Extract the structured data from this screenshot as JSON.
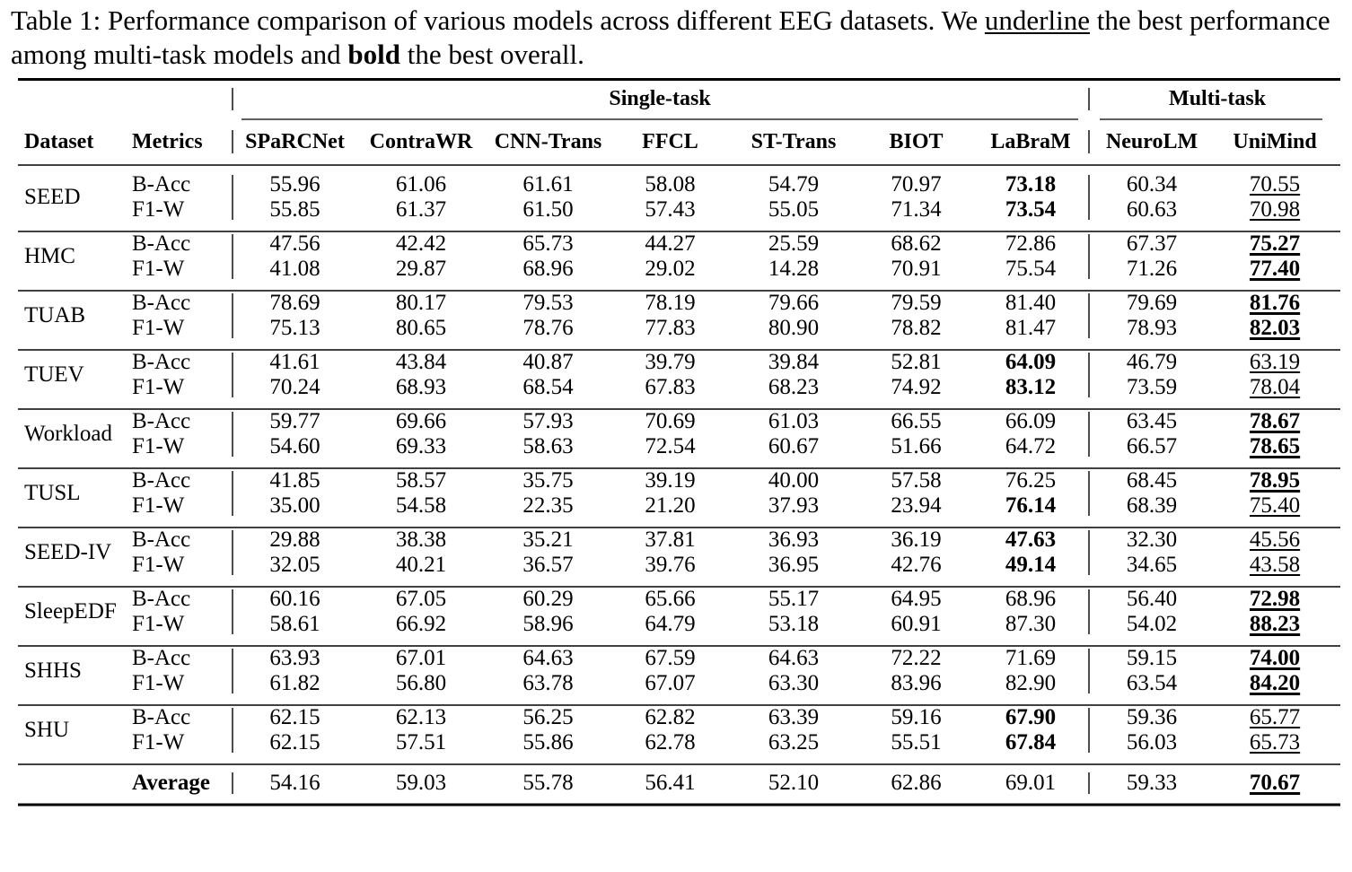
{
  "caption": {
    "part1": "Table 1: Performance comparison of various models across different EEG datasets. We ",
    "underline_word": "underline",
    "part2": " the best performance among multi-task models and ",
    "bold_word": "bold",
    "part3": " the best overall."
  },
  "header": {
    "group_single": "Single-task",
    "group_multi": "Multi-task",
    "dataset": "Dataset",
    "metrics": "Metrics",
    "models": [
      "SPaRCNet",
      "ContraWR",
      "CNN-Trans",
      "FFCL",
      "ST-Trans",
      "BIOT",
      "LaBraM",
      "NeuroLM",
      "UniMind"
    ]
  },
  "rows": [
    {
      "dataset": "SEED",
      "m1": "B-Acc",
      "m2": "F1-W",
      "v1": [
        "55.96",
        "61.06",
        "61.61",
        "58.08",
        "54.79",
        "70.97",
        "73.18",
        "60.34",
        "70.55"
      ],
      "v2": [
        "55.85",
        "61.37",
        "61.50",
        "57.43",
        "55.05",
        "71.34",
        "73.54",
        "60.63",
        "70.98"
      ]
    },
    {
      "dataset": "HMC",
      "m1": "B-Acc",
      "m2": "F1-W",
      "v1": [
        "47.56",
        "42.42",
        "65.73",
        "44.27",
        "25.59",
        "68.62",
        "72.86",
        "67.37",
        "75.27"
      ],
      "v2": [
        "41.08",
        "29.87",
        "68.96",
        "29.02",
        "14.28",
        "70.91",
        "75.54",
        "71.26",
        "77.40"
      ]
    },
    {
      "dataset": "TUAB",
      "m1": "B-Acc",
      "m2": "F1-W",
      "v1": [
        "78.69",
        "80.17",
        "79.53",
        "78.19",
        "79.66",
        "79.59",
        "81.40",
        "79.69",
        "81.76"
      ],
      "v2": [
        "75.13",
        "80.65",
        "78.76",
        "77.83",
        "80.90",
        "78.82",
        "81.47",
        "78.93",
        "82.03"
      ]
    },
    {
      "dataset": "TUEV",
      "m1": "B-Acc",
      "m2": "F1-W",
      "v1": [
        "41.61",
        "43.84",
        "40.87",
        "39.79",
        "39.84",
        "52.81",
        "64.09",
        "46.79",
        "63.19"
      ],
      "v2": [
        "70.24",
        "68.93",
        "68.54",
        "67.83",
        "68.23",
        "74.92",
        "83.12",
        "73.59",
        "78.04"
      ]
    },
    {
      "dataset": "Workload",
      "m1": "B-Acc",
      "m2": "F1-W",
      "v1": [
        "59.77",
        "69.66",
        "57.93",
        "70.69",
        "61.03",
        "66.55",
        "66.09",
        "63.45",
        "78.67"
      ],
      "v2": [
        "54.60",
        "69.33",
        "58.63",
        "72.54",
        "60.67",
        "51.66",
        "64.72",
        "66.57",
        "78.65"
      ]
    },
    {
      "dataset": "TUSL",
      "m1": "B-Acc",
      "m2": "F1-W",
      "v1": [
        "41.85",
        "58.57",
        "35.75",
        "39.19",
        "40.00",
        "57.58",
        "76.25",
        "68.45",
        "78.95"
      ],
      "v2": [
        "35.00",
        "54.58",
        "22.35",
        "21.20",
        "37.93",
        "23.94",
        "76.14",
        "68.39",
        "75.40"
      ]
    },
    {
      "dataset": "SEED-IV",
      "m1": "B-Acc",
      "m2": "F1-W",
      "v1": [
        "29.88",
        "38.38",
        "35.21",
        "37.81",
        "36.93",
        "36.19",
        "47.63",
        "32.30",
        "45.56"
      ],
      "v2": [
        "32.05",
        "40.21",
        "36.57",
        "39.76",
        "36.95",
        "42.76",
        "49.14",
        "34.65",
        "43.58"
      ]
    },
    {
      "dataset": "SleepEDF",
      "m1": "B-Acc",
      "m2": "F1-W",
      "v1": [
        "60.16",
        "67.05",
        "60.29",
        "65.66",
        "55.17",
        "64.95",
        "68.96",
        "56.40",
        "72.98"
      ],
      "v2": [
        "58.61",
        "66.92",
        "58.96",
        "64.79",
        "53.18",
        "60.91",
        "87.30",
        "54.02",
        "88.23"
      ]
    },
    {
      "dataset": "SHHS",
      "m1": "B-Acc",
      "m2": "F1-W",
      "v1": [
        "63.93",
        "67.01",
        "64.63",
        "67.59",
        "64.63",
        "72.22",
        "71.69",
        "59.15",
        "74.00"
      ],
      "v2": [
        "61.82",
        "56.80",
        "63.78",
        "67.07",
        "63.30",
        "83.96",
        "82.90",
        "63.54",
        "84.20"
      ]
    },
    {
      "dataset": "SHU",
      "m1": "B-Acc",
      "m2": "F1-W",
      "v1": [
        "62.15",
        "62.13",
        "56.25",
        "62.82",
        "63.39",
        "59.16",
        "67.90",
        "59.36",
        "65.77"
      ],
      "v2": [
        "62.15",
        "57.51",
        "55.86",
        "62.78",
        "63.25",
        "55.51",
        "67.84",
        "56.03",
        "65.73"
      ]
    }
  ],
  "average": {
    "label": "Average",
    "values": [
      "54.16",
      "59.03",
      "55.78",
      "56.41",
      "52.10",
      "62.86",
      "69.01",
      "59.33",
      "70.67"
    ]
  },
  "styling": {
    "bold": {
      "0": [
        [
          6,
          0
        ],
        [
          6,
          1
        ]
      ],
      "1": [
        [
          8,
          0
        ],
        [
          8,
          1
        ]
      ],
      "2": [
        [
          8,
          0
        ],
        [
          8,
          1
        ]
      ],
      "3": [
        [
          6,
          0
        ],
        [
          6,
          1
        ]
      ],
      "4": [
        [
          8,
          0
        ],
        [
          8,
          1
        ]
      ],
      "5": [
        [
          8,
          0
        ],
        [
          6,
          1
        ]
      ],
      "6": [
        [
          6,
          0
        ],
        [
          6,
          1
        ]
      ],
      "7": [
        [
          8,
          0
        ],
        [
          8,
          1
        ]
      ],
      "8": [
        [
          8,
          0
        ],
        [
          8,
          1
        ]
      ],
      "9": [
        [
          6,
          0
        ],
        [
          6,
          1
        ]
      ],
      "avg": [
        8
      ]
    },
    "underline": {
      "0": [
        [
          8,
          0
        ],
        [
          8,
          1
        ]
      ],
      "1": [
        [
          8,
          0
        ],
        [
          8,
          1
        ]
      ],
      "2": [
        [
          8,
          0
        ],
        [
          8,
          1
        ]
      ],
      "3": [
        [
          8,
          0
        ],
        [
          8,
          1
        ]
      ],
      "4": [
        [
          8,
          0
        ],
        [
          8,
          1
        ]
      ],
      "5": [
        [
          8,
          0
        ],
        [
          8,
          1
        ]
      ],
      "6": [
        [
          8,
          0
        ],
        [
          8,
          1
        ]
      ],
      "7": [
        [
          8,
          0
        ],
        [
          8,
          1
        ]
      ],
      "8": [
        [
          8,
          0
        ],
        [
          8,
          1
        ]
      ],
      "9": [
        [
          8,
          0
        ],
        [
          8,
          1
        ]
      ],
      "avg": [
        8
      ]
    }
  }
}
